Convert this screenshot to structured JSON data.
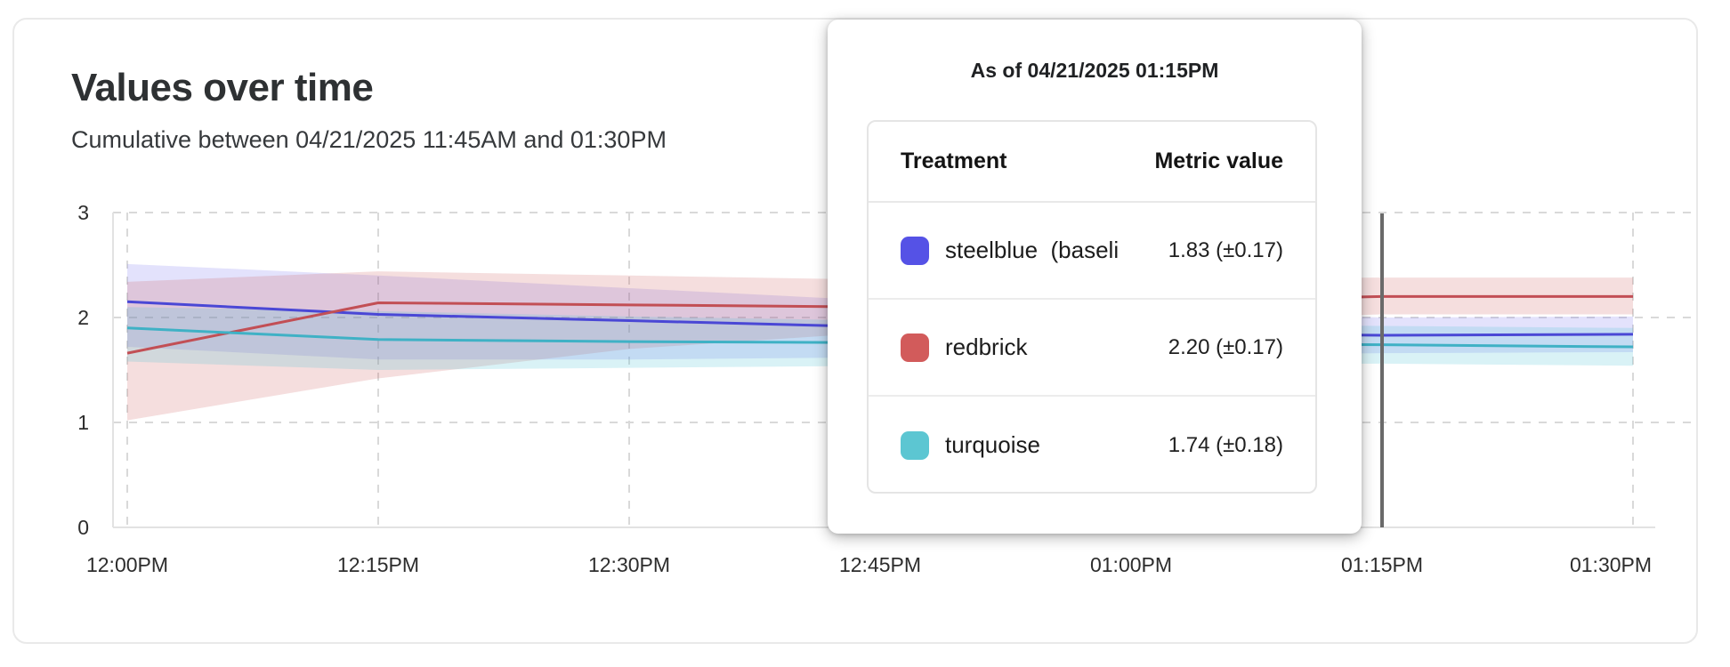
{
  "card": {
    "title": "Values over time",
    "subtitle": "Cumulative between 04/21/2025 11:45AM and 01:30PM"
  },
  "tooltip": {
    "title": "As of 04/21/2025 01:15PM",
    "columns": [
      "Treatment",
      "Metric value"
    ],
    "rows": [
      {
        "label": "steelblue  (baseli",
        "value": "1.83 (±0.17)",
        "color": "#5552e6"
      },
      {
        "label": "redbrick",
        "value": "2.20 (±0.17)",
        "color": "#d25b5b"
      },
      {
        "label": "turquoise",
        "value": "1.74 (±0.18)",
        "color": "#5cc6d2"
      }
    ]
  },
  "chart_data": {
    "type": "line",
    "title": "Values over time",
    "subtitle": "Cumulative between 04/21/2025 11:45AM and 01:30PM",
    "x_ticks": [
      "12:00PM",
      "12:15PM",
      "12:30PM",
      "12:45PM",
      "01:00PM",
      "01:15PM",
      "01:30PM"
    ],
    "y_ticks": [
      0,
      1,
      2,
      3
    ],
    "ylim": [
      0,
      3
    ],
    "grid": "dashed",
    "grid_color": "#d9d9d9",
    "axis_color": "#e2e2e2",
    "cursor_tick": "01:15PM",
    "cursor_color": "#6a6a6a",
    "legend_position": "tooltip-overlay",
    "series": [
      {
        "name": "steelblue",
        "color": "#4a47d5",
        "band_color": "rgba(99,96,240,0.18)",
        "values": [
          2.15,
          2.03,
          1.97,
          1.91,
          1.86,
          1.83,
          1.84
        ],
        "band_top": [
          2.51,
          2.4,
          2.28,
          2.16,
          2.06,
          2.0,
          2.01
        ],
        "band_bottom": [
          1.72,
          1.6,
          1.6,
          1.62,
          1.64,
          1.66,
          1.67
        ]
      },
      {
        "name": "redbrick",
        "color": "#c24f55",
        "band_color": "rgba(205,92,92,0.20)",
        "values": [
          1.66,
          2.14,
          2.12,
          2.1,
          2.15,
          2.2,
          2.2
        ],
        "band_top": [
          2.34,
          2.44,
          2.4,
          2.36,
          2.37,
          2.38,
          2.38
        ],
        "band_bottom": [
          1.02,
          1.42,
          1.7,
          1.86,
          1.96,
          2.03,
          2.03
        ]
      },
      {
        "name": "turquoise",
        "color": "#3fb1c5",
        "band_color": "rgba(82,198,214,0.22)",
        "values": [
          1.9,
          1.79,
          1.77,
          1.76,
          1.75,
          1.74,
          1.72
        ],
        "band_top": [
          2.1,
          2.06,
          2.01,
          1.97,
          1.94,
          1.92,
          1.9
        ],
        "band_bottom": [
          1.58,
          1.5,
          1.52,
          1.54,
          1.55,
          1.56,
          1.54
        ]
      }
    ]
  }
}
